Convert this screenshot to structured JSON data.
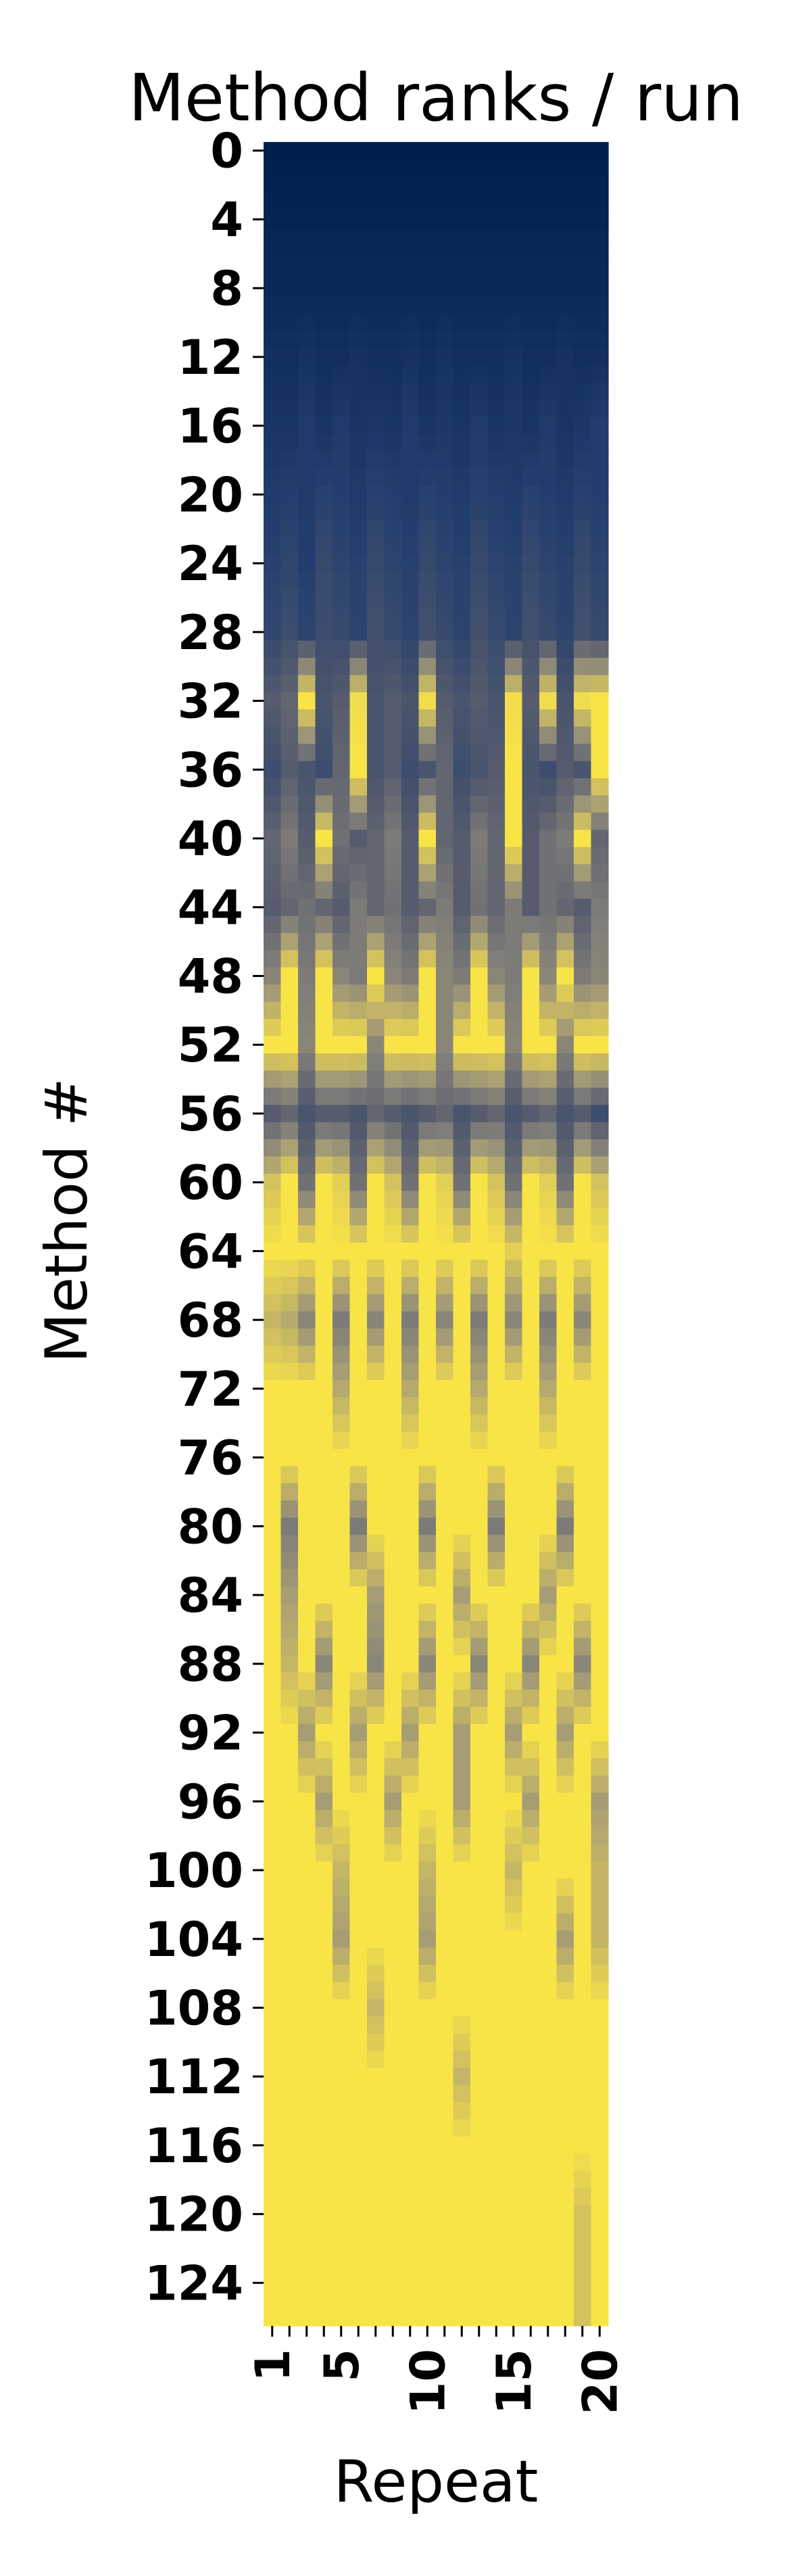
{
  "chart_data": {
    "type": "heatmap",
    "title": "Method ranks / run",
    "xlabel": "Repeat",
    "ylabel": "Method #",
    "n_methods": 127,
    "n_repeats": 20,
    "y_ticks": [
      0,
      4,
      8,
      12,
      16,
      20,
      24,
      28,
      32,
      36,
      40,
      44,
      48,
      52,
      56,
      60,
      64,
      68,
      72,
      76,
      80,
      84,
      88,
      92,
      96,
      100,
      104,
      108,
      112,
      116,
      120,
      124
    ],
    "x_tick_labels": [
      1,
      5,
      10,
      15,
      20
    ],
    "x_minor_ticks": [
      1,
      2,
      3,
      4,
      5,
      6,
      7,
      8,
      9,
      10,
      11,
      12,
      13,
      14,
      15,
      16,
      17,
      18,
      19,
      20
    ],
    "colormap": "cividis",
    "colors": {
      "low": "#00204c",
      "mid": "#7c7b78",
      "high": "#ffe945"
    },
    "legend": "none",
    "grid": false,
    "value_description": "cell color encodes the method's rank in each run, normalized 0 (dark blue, top) to 1 (yellow, bottom)",
    "values_sampled_every_4th_method": [
      [
        0.0,
        0.0,
        0.0,
        0.0,
        0.0,
        0.0,
        0.0,
        0.0,
        0.0,
        0.0,
        0.0,
        0.0,
        0.0,
        0.0,
        0.0,
        0.0,
        0.0,
        0.0,
        0.0,
        0.0
      ],
      [
        0.03,
        0.03,
        0.03,
        0.03,
        0.03,
        0.03,
        0.03,
        0.03,
        0.03,
        0.03,
        0.03,
        0.03,
        0.03,
        0.03,
        0.03,
        0.03,
        0.03,
        0.03,
        0.03,
        0.03
      ],
      [
        0.06,
        0.06,
        0.06,
        0.06,
        0.06,
        0.06,
        0.06,
        0.06,
        0.06,
        0.06,
        0.06,
        0.06,
        0.06,
        0.06,
        0.06,
        0.06,
        0.06,
        0.06,
        0.06,
        0.06
      ],
      [
        0.1,
        0.1,
        0.12,
        0.1,
        0.1,
        0.12,
        0.1,
        0.1,
        0.12,
        0.1,
        0.12,
        0.1,
        0.1,
        0.1,
        0.12,
        0.1,
        0.1,
        0.12,
        0.1,
        0.1
      ],
      [
        0.14,
        0.14,
        0.18,
        0.14,
        0.18,
        0.14,
        0.16,
        0.14,
        0.18,
        0.14,
        0.16,
        0.14,
        0.18,
        0.14,
        0.16,
        0.14,
        0.18,
        0.14,
        0.16,
        0.2
      ],
      [
        0.18,
        0.2,
        0.18,
        0.22,
        0.2,
        0.18,
        0.22,
        0.2,
        0.18,
        0.22,
        0.2,
        0.18,
        0.22,
        0.2,
        0.18,
        0.22,
        0.2,
        0.18,
        0.22,
        0.2
      ],
      [
        0.22,
        0.25,
        0.2,
        0.28,
        0.24,
        0.22,
        0.28,
        0.24,
        0.22,
        0.28,
        0.24,
        0.22,
        0.28,
        0.24,
        0.22,
        0.28,
        0.24,
        0.22,
        0.28,
        0.24
      ],
      [
        0.26,
        0.3,
        0.24,
        0.3,
        0.28,
        0.24,
        0.32,
        0.28,
        0.24,
        0.32,
        0.28,
        0.24,
        0.32,
        0.28,
        0.24,
        0.32,
        0.28,
        0.24,
        0.32,
        0.28
      ],
      [
        0.4,
        0.45,
        0.98,
        0.35,
        0.4,
        0.95,
        0.35,
        0.4,
        0.35,
        0.95,
        0.4,
        0.35,
        0.4,
        0.35,
        0.95,
        0.4,
        0.95,
        0.35,
        0.95,
        0.98
      ],
      [
        0.3,
        0.4,
        0.35,
        0.3,
        0.45,
        0.98,
        0.35,
        0.4,
        0.3,
        0.35,
        0.45,
        0.3,
        0.35,
        0.4,
        0.98,
        0.35,
        0.3,
        0.4,
        0.35,
        0.98
      ],
      [
        0.45,
        0.55,
        0.4,
        0.98,
        0.5,
        0.4,
        0.45,
        0.55,
        0.4,
        0.98,
        0.45,
        0.4,
        0.55,
        0.45,
        0.98,
        0.4,
        0.5,
        0.55,
        0.98,
        0.45
      ],
      [
        0.4,
        0.45,
        0.5,
        0.45,
        0.4,
        0.55,
        0.45,
        0.5,
        0.4,
        0.45,
        0.55,
        0.4,
        0.5,
        0.45,
        0.55,
        0.4,
        0.5,
        0.45,
        0.4,
        0.55
      ],
      [
        0.6,
        0.98,
        0.55,
        0.98,
        0.6,
        0.55,
        0.98,
        0.6,
        0.55,
        0.98,
        0.6,
        0.55,
        0.98,
        0.6,
        0.55,
        0.98,
        0.6,
        0.98,
        0.55,
        0.6
      ],
      [
        0.98,
        0.98,
        0.6,
        0.98,
        0.98,
        0.98,
        0.6,
        0.98,
        0.98,
        0.98,
        0.6,
        0.98,
        0.98,
        0.98,
        0.6,
        0.98,
        0.98,
        0.6,
        0.98,
        0.98
      ],
      [
        0.4,
        0.45,
        0.35,
        0.4,
        0.4,
        0.35,
        0.45,
        0.4,
        0.35,
        0.4,
        0.45,
        0.35,
        0.4,
        0.45,
        0.35,
        0.4,
        0.45,
        0.35,
        0.4,
        0.3
      ],
      [
        0.85,
        0.98,
        0.5,
        0.98,
        0.9,
        0.5,
        0.98,
        0.85,
        0.5,
        0.98,
        0.9,
        0.5,
        0.98,
        0.85,
        0.5,
        0.98,
        0.9,
        0.5,
        0.98,
        0.85
      ],
      [
        0.98,
        0.98,
        0.98,
        0.98,
        0.98,
        0.98,
        0.98,
        0.98,
        0.98,
        0.98,
        0.98,
        0.98,
        0.98,
        0.98,
        0.9,
        0.98,
        0.98,
        0.98,
        0.98,
        0.98
      ],
      [
        0.8,
        0.75,
        0.6,
        0.98,
        0.55,
        0.98,
        0.6,
        0.98,
        0.55,
        0.98,
        0.6,
        0.98,
        0.55,
        0.98,
        0.6,
        0.98,
        0.55,
        0.98,
        0.6,
        0.98
      ],
      [
        0.98,
        0.98,
        0.98,
        0.98,
        0.75,
        0.98,
        0.98,
        0.98,
        0.75,
        0.98,
        0.98,
        0.98,
        0.75,
        0.98,
        0.98,
        0.98,
        0.75,
        0.98,
        0.98,
        0.98
      ],
      [
        0.98,
        0.98,
        0.98,
        0.98,
        0.98,
        0.98,
        0.98,
        0.98,
        0.98,
        0.98,
        0.98,
        0.98,
        0.98,
        0.98,
        0.98,
        0.98,
        0.98,
        0.98,
        0.98,
        0.98
      ],
      [
        0.98,
        0.55,
        0.98,
        0.98,
        0.98,
        0.55,
        0.98,
        0.98,
        0.98,
        0.55,
        0.98,
        0.98,
        0.98,
        0.55,
        0.98,
        0.98,
        0.98,
        0.55,
        0.98,
        0.98
      ],
      [
        0.98,
        0.7,
        0.98,
        0.98,
        0.98,
        0.98,
        0.7,
        0.98,
        0.98,
        0.98,
        0.98,
        0.7,
        0.98,
        0.98,
        0.98,
        0.98,
        0.7,
        0.98,
        0.98,
        0.98
      ],
      [
        0.98,
        0.8,
        0.98,
        0.6,
        0.98,
        0.98,
        0.6,
        0.98,
        0.98,
        0.6,
        0.98,
        0.98,
        0.6,
        0.98,
        0.98,
        0.6,
        0.98,
        0.98,
        0.6,
        0.98
      ],
      [
        0.98,
        0.98,
        0.7,
        0.98,
        0.98,
        0.7,
        0.98,
        0.98,
        0.7,
        0.98,
        0.98,
        0.7,
        0.98,
        0.98,
        0.7,
        0.98,
        0.98,
        0.7,
        0.98,
        0.98
      ],
      [
        0.98,
        0.98,
        0.98,
        0.7,
        0.98,
        0.98,
        0.98,
        0.7,
        0.98,
        0.98,
        0.98,
        0.7,
        0.98,
        0.98,
        0.98,
        0.7,
        0.98,
        0.98,
        0.98,
        0.7
      ],
      [
        0.98,
        0.98,
        0.98,
        0.98,
        0.8,
        0.98,
        0.98,
        0.98,
        0.98,
        0.8,
        0.98,
        0.98,
        0.98,
        0.98,
        0.8,
        0.98,
        0.98,
        0.98,
        0.98,
        0.8
      ],
      [
        0.98,
        0.98,
        0.98,
        0.98,
        0.7,
        0.98,
        0.98,
        0.98,
        0.98,
        0.7,
        0.98,
        0.98,
        0.98,
        0.98,
        0.98,
        0.98,
        0.98,
        0.7,
        0.98,
        0.8
      ],
      [
        0.98,
        0.98,
        0.98,
        0.98,
        0.98,
        0.98,
        0.8,
        0.98,
        0.98,
        0.98,
        0.98,
        0.98,
        0.98,
        0.98,
        0.98,
        0.98,
        0.98,
        0.98,
        0.98,
        0.98
      ],
      [
        0.98,
        0.98,
        0.98,
        0.98,
        0.98,
        0.98,
        0.98,
        0.98,
        0.98,
        0.98,
        0.98,
        0.8,
        0.98,
        0.98,
        0.98,
        0.98,
        0.98,
        0.98,
        0.98,
        0.98
      ],
      [
        0.98,
        0.98,
        0.98,
        0.98,
        0.98,
        0.98,
        0.98,
        0.98,
        0.98,
        0.98,
        0.98,
        0.98,
        0.98,
        0.98,
        0.98,
        0.98,
        0.98,
        0.98,
        0.98,
        0.98
      ],
      [
        0.98,
        0.98,
        0.98,
        0.98,
        0.98,
        0.98,
        0.98,
        0.98,
        0.98,
        0.98,
        0.98,
        0.98,
        0.98,
        0.98,
        0.98,
        0.98,
        0.98,
        0.98,
        0.85,
        0.98
      ],
      [
        0.98,
        0.98,
        0.98,
        0.98,
        0.98,
        0.98,
        0.98,
        0.98,
        0.98,
        0.98,
        0.98,
        0.98,
        0.98,
        0.98,
        0.98,
        0.98,
        0.98,
        0.98,
        0.85,
        0.98
      ]
    ]
  }
}
